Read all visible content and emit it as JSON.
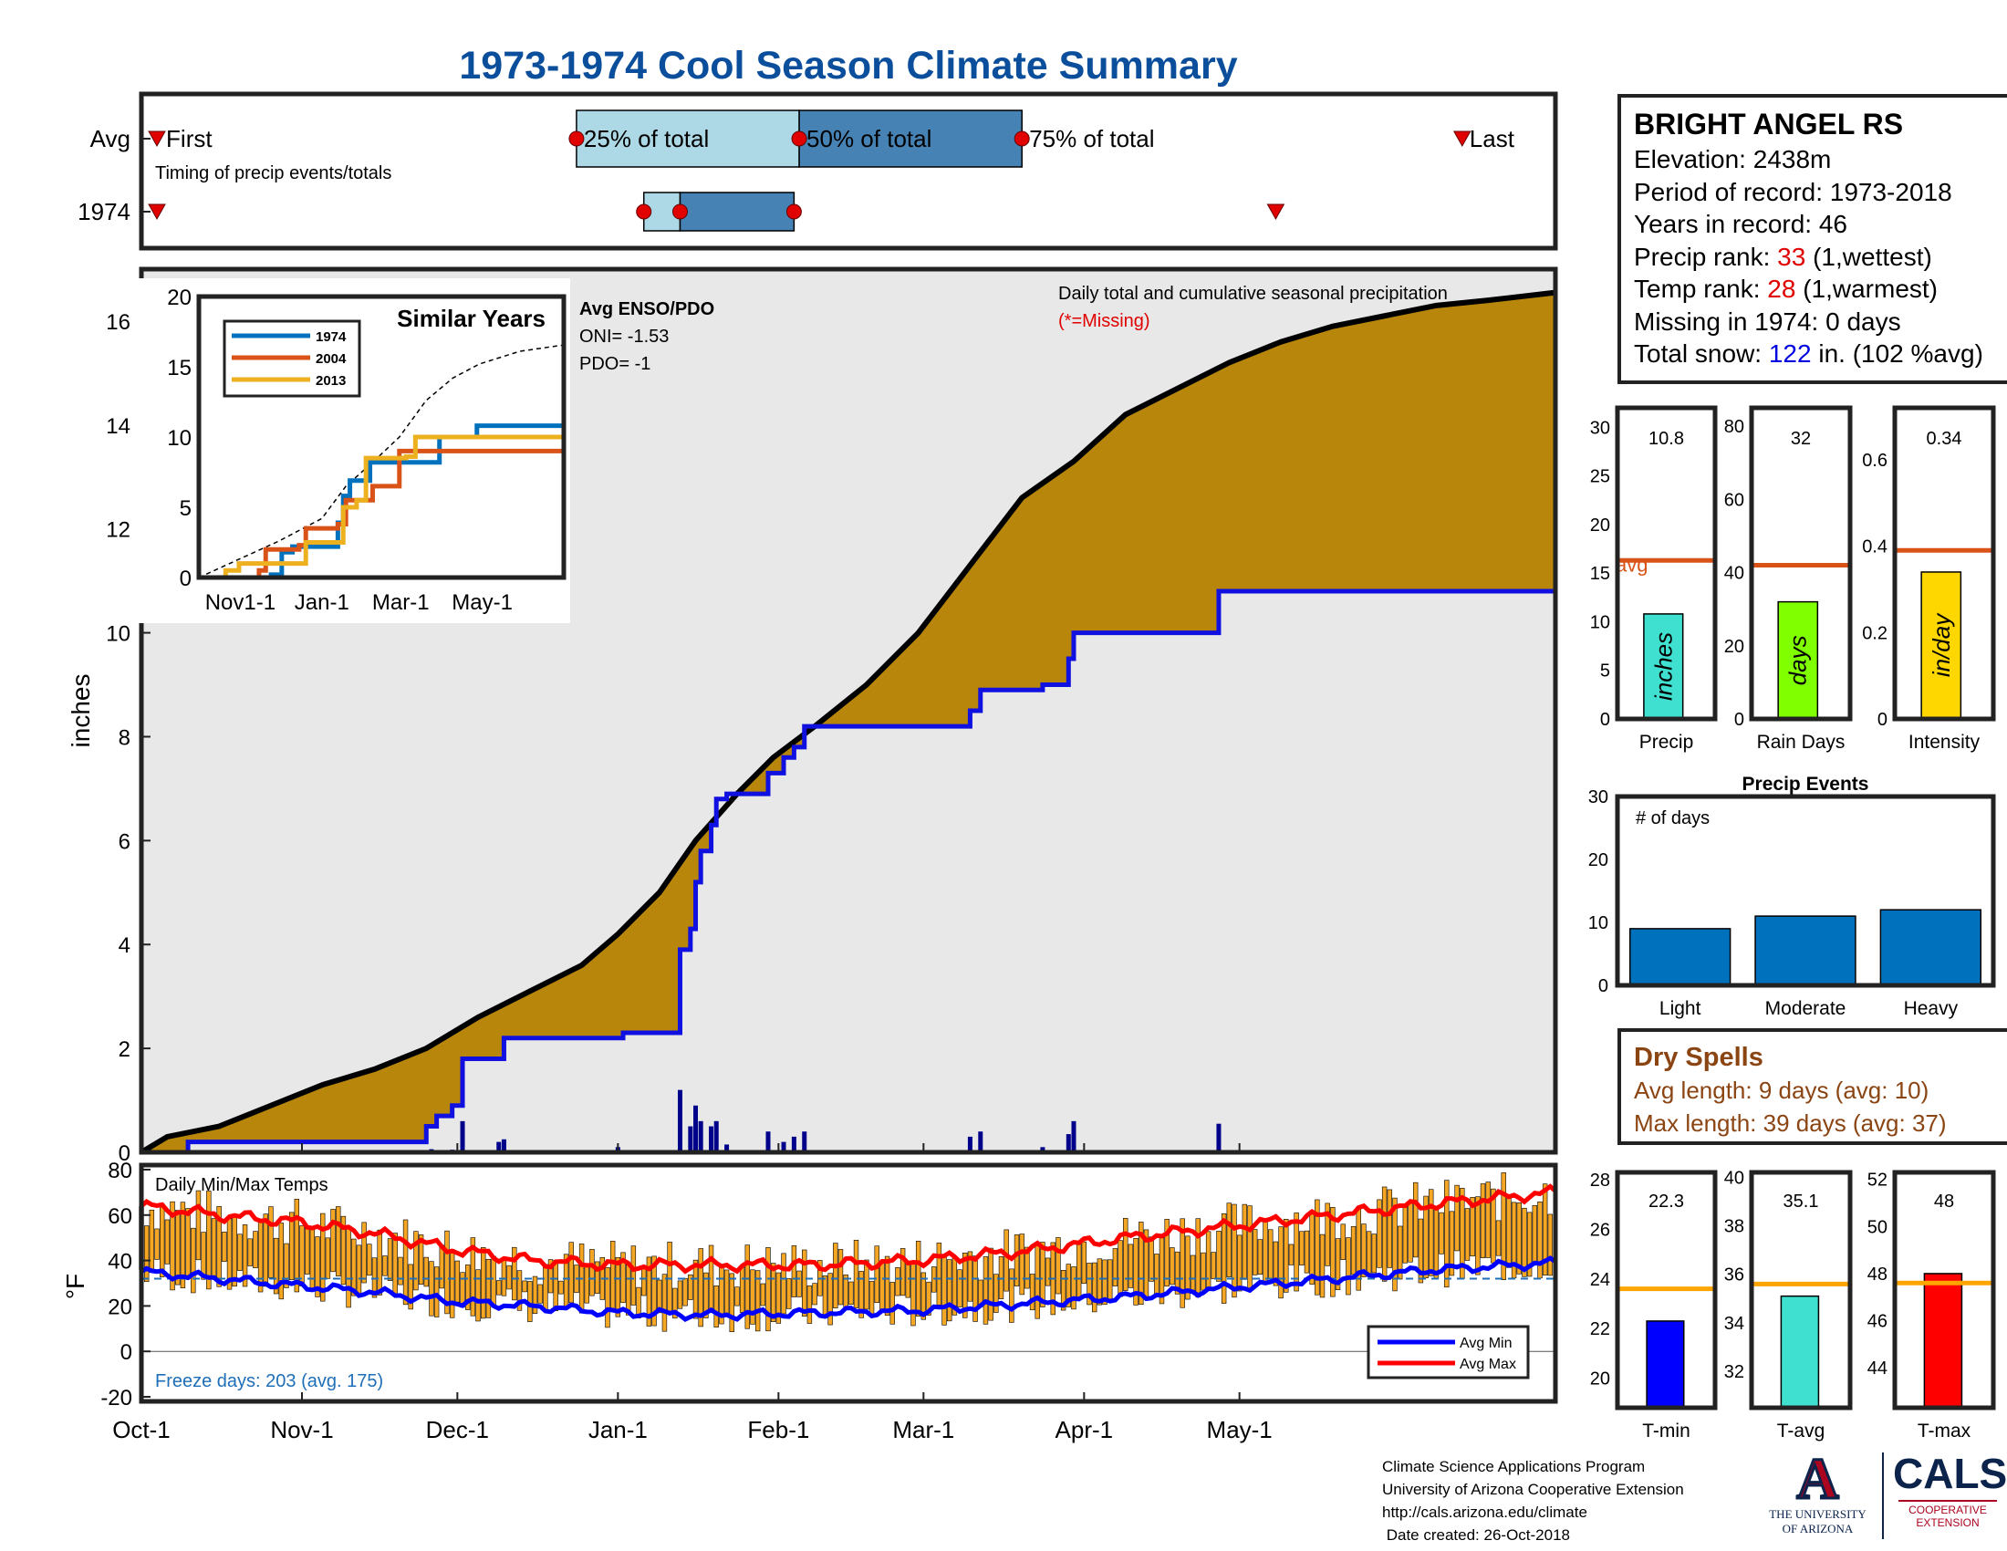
{
  "title": "1973-1974 Cool Season Climate Summary",
  "station": {
    "name": "BRIGHT ANGEL RS",
    "elevation_label": "Elevation: 2438m",
    "period_label": "Period of record: 1973-2018",
    "years_label": "Years in record: 46",
    "precip_rank_prefix": "Precip rank: ",
    "precip_rank": "33",
    "precip_rank_suffix": " (1,wettest)",
    "temp_rank_prefix": "Temp rank: ",
    "temp_rank": "28",
    "temp_rank_suffix": " (1,warmest)",
    "missing_label": "Missing in 1974: 0 days",
    "snow_prefix": "Total snow: ",
    "snow_value": "122",
    "snow_suffix": " in. (102 %avg)"
  },
  "colors": {
    "title_blue": "#0b4f9c",
    "cumulative_fill": "#b8860b",
    "light_grey": "#e8e8e8",
    "obs_line": "#1010e0",
    "rank_red": "#e00000",
    "snow_blue": "#0000e0",
    "dry_brown": "#8b4513",
    "orange_line": "#d95319",
    "tavg_line": "#ffa500",
    "bar_blue": "#0072bd",
    "temp_bar": "#f5a623"
  },
  "timing": {
    "rows": [
      "Avg",
      "1974"
    ],
    "labels": {
      "first": "First",
      "p25": "25% of total",
      "p50": "50% of total",
      "p75": "75% of total",
      "last": "Last"
    },
    "subtitle": "Timing of precip events/totals",
    "avg_days": {
      "first": 3,
      "p25": 84,
      "p50": 127,
      "p75": 170,
      "last": 255
    },
    "year_days": {
      "first": 3,
      "p25": 97,
      "p50": 104,
      "p75": 126,
      "last": 219
    }
  },
  "chart_data": [
    {
      "id": "cumulative",
      "type": "area",
      "title": "Daily total and cumulative seasonal precipitation",
      "missing_note": "(*=Missing)",
      "ylabel": "inches",
      "ylim": [
        0,
        17
      ],
      "yticks": [
        0,
        2,
        4,
        6,
        8,
        10,
        12,
        14,
        16
      ],
      "xlim_days": [
        0,
        273
      ],
      "xticks": [
        {
          "label": "Oct-1",
          "day": 0
        },
        {
          "label": "Nov-1",
          "day": 31
        },
        {
          "label": "Dec-1",
          "day": 61
        },
        {
          "label": "Jan-1",
          "day": 92
        },
        {
          "label": "Feb-1",
          "day": 123
        },
        {
          "label": "Mar-1",
          "day": 151
        },
        {
          "label": "Apr-1",
          "day": 182
        },
        {
          "label": "May-1",
          "day": 212
        }
      ],
      "avg_cumulative": [
        [
          0,
          0
        ],
        [
          5,
          0.3
        ],
        [
          15,
          0.5
        ],
        [
          25,
          0.9
        ],
        [
          35,
          1.3
        ],
        [
          45,
          1.6
        ],
        [
          55,
          2.0
        ],
        [
          65,
          2.6
        ],
        [
          75,
          3.1
        ],
        [
          85,
          3.6
        ],
        [
          92,
          4.2
        ],
        [
          100,
          5.0
        ],
        [
          107,
          6.0
        ],
        [
          115,
          6.9
        ],
        [
          122,
          7.6
        ],
        [
          130,
          8.2
        ],
        [
          140,
          9.0
        ],
        [
          150,
          10.0
        ],
        [
          160,
          11.3
        ],
        [
          170,
          12.6
        ],
        [
          180,
          13.3
        ],
        [
          190,
          14.2
        ],
        [
          200,
          14.7
        ],
        [
          210,
          15.2
        ],
        [
          220,
          15.6
        ],
        [
          230,
          15.9
        ],
        [
          240,
          16.1
        ],
        [
          250,
          16.3
        ],
        [
          260,
          16.4
        ],
        [
          273,
          16.55
        ]
      ],
      "obs_cumulative": [
        [
          0,
          0
        ],
        [
          9,
          0.2
        ],
        [
          54,
          0.2
        ],
        [
          55,
          0.5
        ],
        [
          57,
          0.7
        ],
        [
          60,
          0.9
        ],
        [
          62,
          1.8
        ],
        [
          69,
          1.8
        ],
        [
          70,
          2.2
        ],
        [
          93,
          2.3
        ],
        [
          103,
          2.3
        ],
        [
          104,
          3.9
        ],
        [
          106,
          4.3
        ],
        [
          107,
          5.2
        ],
        [
          108,
          5.8
        ],
        [
          110,
          6.3
        ],
        [
          111,
          6.8
        ],
        [
          113,
          6.9
        ],
        [
          121,
          7.3
        ],
        [
          124,
          7.6
        ],
        [
          126,
          7.8
        ],
        [
          128,
          8.2
        ],
        [
          159,
          8.2
        ],
        [
          160,
          8.5
        ],
        [
          162,
          8.9
        ],
        [
          173,
          8.9
        ],
        [
          174,
          9.0
        ],
        [
          178,
          9.0
        ],
        [
          179,
          9.5
        ],
        [
          180,
          10.0
        ],
        [
          207,
          10.0
        ],
        [
          208,
          10.8
        ],
        [
          273,
          10.8
        ]
      ],
      "daily_bars": [
        [
          56,
          0.06
        ],
        [
          60,
          0.05
        ],
        [
          62,
          0.6
        ],
        [
          69,
          0.2
        ],
        [
          70,
          0.25
        ],
        [
          92,
          0.1
        ],
        [
          104,
          1.2
        ],
        [
          106,
          0.5
        ],
        [
          107,
          0.9
        ],
        [
          108,
          0.6
        ],
        [
          110,
          0.5
        ],
        [
          111,
          0.6
        ],
        [
          113,
          0.15
        ],
        [
          121,
          0.4
        ],
        [
          124,
          0.2
        ],
        [
          126,
          0.3
        ],
        [
          128,
          0.4
        ],
        [
          160,
          0.3
        ],
        [
          162,
          0.4
        ],
        [
          174,
          0.1
        ],
        [
          179,
          0.35
        ],
        [
          180,
          0.6
        ],
        [
          208,
          0.55
        ]
      ]
    },
    {
      "id": "similar_years",
      "type": "line",
      "title": "Similar Years",
      "ylim": [
        0,
        20
      ],
      "yticks": [
        0,
        5,
        10,
        15,
        20
      ],
      "xticks": [
        {
          "label": "Nov1-1",
          "day": 31
        },
        {
          "label": "Jan-1",
          "day": 92
        },
        {
          "label": "Mar-1",
          "day": 151
        },
        {
          "label": "May-1",
          "day": 212
        }
      ],
      "series": [
        {
          "name": "1974",
          "color": "#0072bd",
          "points": [
            [
              0,
              0
            ],
            [
              54,
              0.2
            ],
            [
              62,
              1.8
            ],
            [
              70,
              2.2
            ],
            [
              104,
              3.9
            ],
            [
              108,
              5.8
            ],
            [
              113,
              6.9
            ],
            [
              128,
              8.2
            ],
            [
              159,
              8.2
            ],
            [
              180,
              10.0
            ],
            [
              207,
              10.0
            ],
            [
              208,
              10.8
            ],
            [
              273,
              10.8
            ]
          ]
        },
        {
          "name": "2004",
          "color": "#d95319",
          "points": [
            [
              0,
              0
            ],
            [
              45,
              0.5
            ],
            [
              50,
              2
            ],
            [
              75,
              2.3
            ],
            [
              80,
              3.5
            ],
            [
              104,
              3.8
            ],
            [
              110,
              5.5
            ],
            [
              125,
              5.5
            ],
            [
              130,
              6.5
            ],
            [
              145,
              6.5
            ],
            [
              150,
              9.0
            ],
            [
              200,
              9.0
            ],
            [
              273,
              9.0
            ]
          ]
        },
        {
          "name": "2013",
          "color": "#edb120",
          "points": [
            [
              0,
              0
            ],
            [
              20,
              0.5
            ],
            [
              30,
              1
            ],
            [
              75,
              1
            ],
            [
              80,
              2.5
            ],
            [
              104,
              2.5
            ],
            [
              108,
              5
            ],
            [
              118,
              5.5
            ],
            [
              125,
              8.5
            ],
            [
              155,
              8.6
            ],
            [
              162,
              10
            ],
            [
              200,
              10
            ],
            [
              273,
              10.8
            ]
          ]
        }
      ],
      "avg_dashed": [
        [
          0,
          0
        ],
        [
          30,
          1.3
        ],
        [
          60,
          2.6
        ],
        [
          92,
          4.2
        ],
        [
          110,
          6.5
        ],
        [
          130,
          8.2
        ],
        [
          150,
          10.0
        ],
        [
          170,
          12.6
        ],
        [
          190,
          14.2
        ],
        [
          210,
          15.2
        ],
        [
          240,
          16.1
        ],
        [
          273,
          16.55
        ]
      ]
    },
    {
      "id": "seasonal_bars",
      "type": "bar",
      "panels": [
        {
          "category": "Precip",
          "unit": "inches",
          "value": 10.8,
          "value_label": "10.8",
          "avg": 16.3,
          "avg_label": "avg",
          "ylim": [
            0,
            32
          ],
          "yticks": [
            0,
            5,
            10,
            15,
            20,
            25,
            30
          ],
          "color": "#40e0d0"
        },
        {
          "category": "Rain Days",
          "unit": "days",
          "value": 32,
          "value_label": "32",
          "avg": 42,
          "ylim": [
            0,
            85
          ],
          "yticks": [
            0,
            20,
            40,
            60,
            80
          ],
          "color": "#7fff00"
        },
        {
          "category": "Intensity",
          "unit": "in/day",
          "value": 0.34,
          "value_label": "0.34",
          "avg": 0.39,
          "ylim": [
            0,
            0.72
          ],
          "yticks": [
            0,
            0.2,
            0.4,
            0.6
          ],
          "ytick_labels": [
            "0",
            "0.2",
            "0.4",
            "0.6"
          ],
          "color": "#ffd700"
        }
      ]
    },
    {
      "id": "precip_events",
      "type": "bar",
      "title": "Precip Events",
      "ylabel_inside": "# of days",
      "categories": [
        "Light",
        "Moderate",
        "Heavy"
      ],
      "values": [
        9,
        11,
        12
      ],
      "ylim": [
        0,
        30
      ],
      "yticks": [
        0,
        10,
        20,
        30
      ]
    },
    {
      "id": "daily_temps",
      "type": "bar",
      "title": "Daily Min/Max Temps",
      "ylabel": "°F",
      "ylim": [
        -22,
        82
      ],
      "yticks": [
        -20,
        0,
        20,
        40,
        60,
        80
      ],
      "freeze_label": "Freeze days: 203 (avg. 175)",
      "legend": [
        "Avg Min",
        "Avg Max"
      ],
      "freeze_line": 32,
      "avg_max": [
        [
          0,
          64
        ],
        [
          15,
          60
        ],
        [
          30,
          57
        ],
        [
          45,
          52
        ],
        [
          60,
          45
        ],
        [
          75,
          40
        ],
        [
          92,
          38
        ],
        [
          110,
          38
        ],
        [
          130,
          38
        ],
        [
          150,
          40
        ],
        [
          170,
          44
        ],
        [
          190,
          50
        ],
        [
          210,
          55
        ],
        [
          230,
          60
        ],
        [
          250,
          65
        ],
        [
          273,
          70
        ]
      ],
      "avg_min": [
        [
          0,
          35
        ],
        [
          15,
          32
        ],
        [
          30,
          29
        ],
        [
          45,
          26
        ],
        [
          60,
          22
        ],
        [
          75,
          20
        ],
        [
          92,
          17
        ],
        [
          110,
          16
        ],
        [
          130,
          17
        ],
        [
          150,
          18
        ],
        [
          170,
          21
        ],
        [
          190,
          24
        ],
        [
          210,
          28
        ],
        [
          230,
          32
        ],
        [
          250,
          36
        ],
        [
          273,
          39
        ]
      ]
    },
    {
      "id": "temp_bars",
      "type": "bar",
      "panels": [
        {
          "category": "T-min",
          "value": 22.3,
          "value_label": "22.3",
          "avg": 23.6,
          "ylim": [
            18.8,
            28.3
          ],
          "yticks": [
            20,
            22,
            24,
            26,
            28
          ],
          "color": "#0000ff"
        },
        {
          "category": "T-avg",
          "value": 35.1,
          "value_label": "35.1",
          "avg": 35.6,
          "ylim": [
            30.5,
            40.2
          ],
          "yticks": [
            32,
            34,
            36,
            38,
            40
          ],
          "color": "#40e0d0"
        },
        {
          "category": "T-max",
          "value": 48,
          "value_label": "48",
          "avg": 47.6,
          "ylim": [
            42.3,
            52.3
          ],
          "yticks": [
            44,
            46,
            48,
            50,
            52
          ],
          "color": "#ff0000"
        }
      ]
    }
  ],
  "enso": {
    "title": "Avg ENSO/PDO",
    "oni": "ONI= -1.53",
    "pdo": "PDO= -1"
  },
  "dry_spells": {
    "title": "Dry Spells",
    "avg": "Avg length: 9 days (avg: 10)",
    "max": "Max length: 39 days (avg: 37)"
  },
  "footer": {
    "line1": "Climate Science Applications Program",
    "line2": "University of Arizona Cooperative Extension",
    "line3": "http://cals.arizona.edu/climate",
    "line4": " Date created: 26-Oct-2018"
  },
  "logos": {
    "ua_line1": "THE UNIVERSITY",
    "ua_line2": "OF ARIZONA",
    "cals": "CALS",
    "cals_sub1": "COOPERATIVE",
    "cals_sub2": "EXTENSION"
  }
}
